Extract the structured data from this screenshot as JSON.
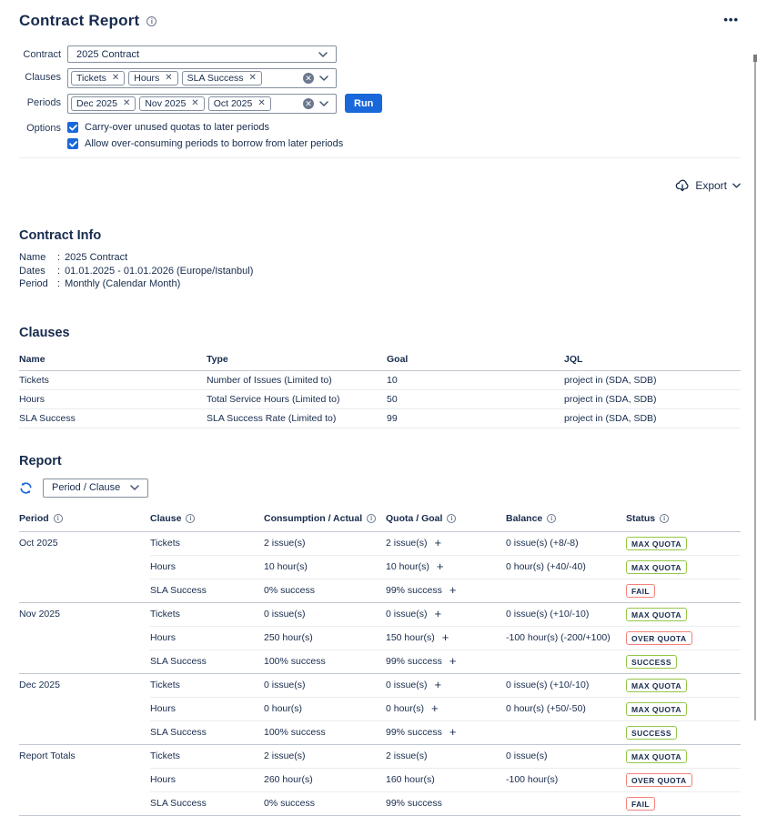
{
  "page": {
    "title": "Contract Report",
    "more_menu": "•••"
  },
  "form": {
    "contract": {
      "label": "Contract",
      "value": "2025 Contract"
    },
    "clauses": {
      "label": "Clauses",
      "tags": [
        "Tickets",
        "Hours",
        "SLA Success"
      ]
    },
    "periods": {
      "label": "Periods",
      "tags": [
        "Dec 2025",
        "Nov 2025",
        "Oct 2025"
      ]
    },
    "run_label": "Run",
    "options": {
      "label": "Options",
      "items": [
        {
          "text": "Carry-over unused quotas to later periods",
          "checked": true
        },
        {
          "text": "Allow over-consuming periods to borrow from later periods",
          "checked": true
        }
      ]
    }
  },
  "export": {
    "label": "Export"
  },
  "contract_info": {
    "heading": "Contract Info",
    "rows": [
      {
        "label": "Name",
        "value": "2025 Contract"
      },
      {
        "label": "Dates",
        "value": "01.01.2025 - 01.01.2026 (Europe/Istanbul)"
      },
      {
        "label": "Period",
        "value": "Monthly (Calendar Month)"
      }
    ]
  },
  "clauses_section": {
    "heading": "Clauses",
    "columns": [
      "Name",
      "Type",
      "Goal",
      "JQL"
    ],
    "rows": [
      [
        "Tickets",
        "Number of Issues (Limited to)",
        "10",
        "project in (SDA, SDB)"
      ],
      [
        "Hours",
        "Total Service Hours (Limited to)",
        "50",
        "project in (SDA, SDB)"
      ],
      [
        "SLA Success",
        "SLA Success Rate (Limited to)",
        "99",
        "project in (SDA, SDB)"
      ]
    ]
  },
  "report": {
    "heading": "Report",
    "group_by": "Period / Clause",
    "columns": [
      "Period",
      "Clause",
      "Consumption / Actual",
      "Quota / Goal",
      "Balance",
      "Status"
    ],
    "groups": [
      {
        "period": "Oct 2025",
        "rows": [
          {
            "clause": "Tickets",
            "consumption": "2 issue(s)",
            "quota": "2 issue(s)",
            "quota_add": true,
            "balance": "0 issue(s) (+8/-8)",
            "status": "MAX QUOTA",
            "status_type": "success"
          },
          {
            "clause": "Hours",
            "consumption": "10 hour(s)",
            "quota": "10 hour(s)",
            "quota_add": true,
            "balance": "0 hour(s) (+40/-40)",
            "status": "MAX QUOTA",
            "status_type": "success"
          },
          {
            "clause": "SLA Success",
            "consumption": "0% success",
            "quota": "99% success",
            "quota_add": true,
            "balance": "",
            "status": "FAIL",
            "status_type": "danger"
          }
        ]
      },
      {
        "period": "Nov 2025",
        "rows": [
          {
            "clause": "Tickets",
            "consumption": "0 issue(s)",
            "quota": "0 issue(s)",
            "quota_add": true,
            "balance": "0 issue(s) (+10/-10)",
            "status": "MAX QUOTA",
            "status_type": "success"
          },
          {
            "clause": "Hours",
            "consumption": "250 hour(s)",
            "quota": "150 hour(s)",
            "quota_add": true,
            "balance": "-100 hour(s) (-200/+100)",
            "status": "OVER QUOTA",
            "status_type": "danger"
          },
          {
            "clause": "SLA Success",
            "consumption": "100% success",
            "quota": "99% success",
            "quota_add": true,
            "balance": "",
            "status": "SUCCESS",
            "status_type": "success"
          }
        ]
      },
      {
        "period": "Dec 2025",
        "rows": [
          {
            "clause": "Tickets",
            "consumption": "0 issue(s)",
            "quota": "0 issue(s)",
            "quota_add": true,
            "balance": "0 issue(s) (+10/-10)",
            "status": "MAX QUOTA",
            "status_type": "success"
          },
          {
            "clause": "Hours",
            "consumption": "0 hour(s)",
            "quota": "0 hour(s)",
            "quota_add": true,
            "balance": "0 hour(s) (+50/-50)",
            "status": "MAX QUOTA",
            "status_type": "success"
          },
          {
            "clause": "SLA Success",
            "consumption": "100% success",
            "quota": "99% success",
            "quota_add": true,
            "balance": "",
            "status": "SUCCESS",
            "status_type": "success"
          }
        ]
      },
      {
        "period": "Report Totals",
        "rows": [
          {
            "clause": "Tickets",
            "consumption": "2 issue(s)",
            "quota": "2 issue(s)",
            "quota_add": false,
            "balance": "0 issue(s)",
            "status": "MAX QUOTA",
            "status_type": "success"
          },
          {
            "clause": "Hours",
            "consumption": "260 hour(s)",
            "quota": "160 hour(s)",
            "quota_add": false,
            "balance": "-100 hour(s)",
            "status": "OVER QUOTA",
            "status_type": "danger"
          },
          {
            "clause": "SLA Success",
            "consumption": "0% success",
            "quota": "99% success",
            "quota_add": false,
            "balance": "",
            "status": "FAIL",
            "status_type": "danger"
          }
        ]
      }
    ]
  },
  "icons": {
    "info": "info-icon (circled i)",
    "more": "more-horizontal-icon (•••)",
    "chevron": "chevron-down-icon",
    "clear": "clear-icon (⊗)",
    "check": "checkmark-icon",
    "export": "cloud-download-icon",
    "refresh": "sync-icon",
    "plus": "plus-icon",
    "tag_remove": "remove-x-icon"
  },
  "colors": {
    "accent": "#1868DB",
    "text": "#172B4D",
    "success_border": "#94C748",
    "danger_border": "#F4817A",
    "input_border": "#8590A2",
    "row_border": "#EBECF0",
    "group_border": "#C1C7D0"
  }
}
